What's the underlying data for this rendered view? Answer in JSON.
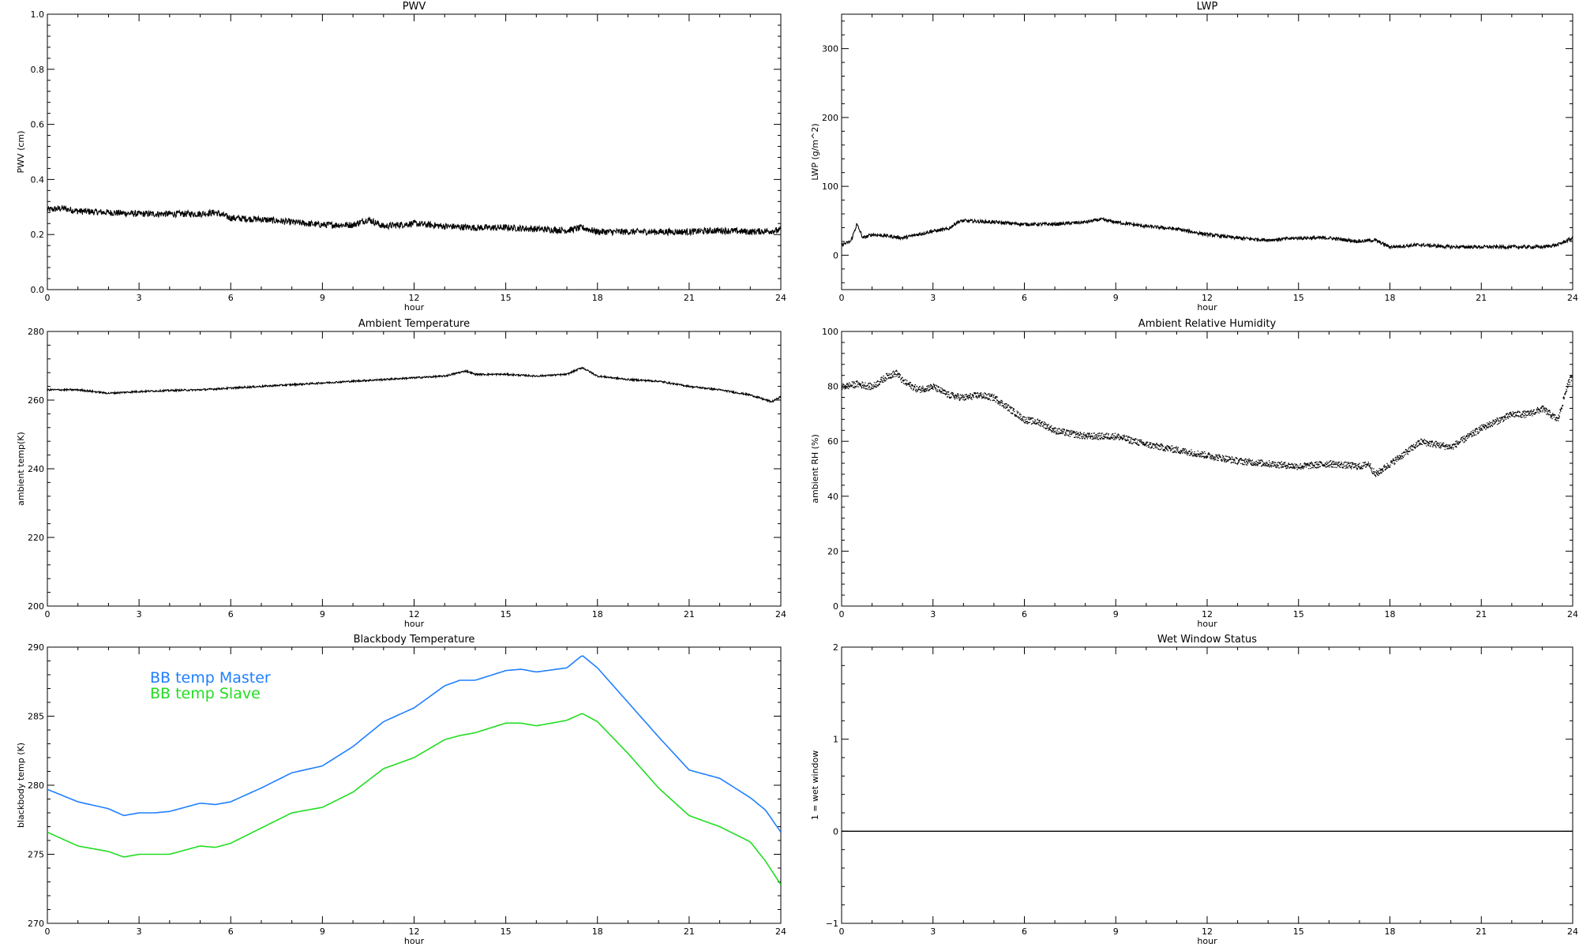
{
  "chart_data": [
    {
      "type": "line",
      "title": "PWV",
      "xlabel": "hour",
      "ylabel": "PWV (cm)",
      "xlim": [
        0,
        24
      ],
      "ylim": [
        0,
        1
      ],
      "xticks": [
        0,
        3,
        6,
        9,
        12,
        15,
        18,
        21,
        24
      ],
      "yticks": [
        "0.0",
        "0.2",
        "0.4",
        "0.6",
        "0.8",
        "1.0"
      ],
      "ytick_values": [
        0,
        0.2,
        0.4,
        0.6,
        0.8,
        1.0
      ],
      "series": [
        {
          "style": "noisy-line",
          "color": "#000000",
          "noise": 0.012,
          "x": [
            0,
            0.5,
            1,
            2,
            3,
            4,
            5,
            5.5,
            6,
            7,
            8,
            9,
            10,
            10.5,
            11,
            12,
            13,
            14,
            15,
            16,
            17,
            17.5,
            18,
            19,
            20,
            21,
            22,
            23,
            24
          ],
          "y": [
            0.29,
            0.295,
            0.285,
            0.28,
            0.275,
            0.275,
            0.275,
            0.28,
            0.26,
            0.255,
            0.245,
            0.235,
            0.235,
            0.255,
            0.23,
            0.24,
            0.23,
            0.225,
            0.225,
            0.22,
            0.215,
            0.225,
            0.21,
            0.21,
            0.21,
            0.21,
            0.215,
            0.21,
            0.215
          ]
        }
      ]
    },
    {
      "type": "line",
      "title": "LWP",
      "xlabel": "hour",
      "ylabel": "LWP (g/m^2)",
      "xlim": [
        0,
        24
      ],
      "ylim": [
        -50,
        350
      ],
      "xticks": [
        0,
        3,
        6,
        9,
        12,
        15,
        18,
        21,
        24
      ],
      "yticks": [
        "0",
        "100",
        "200",
        "300"
      ],
      "ytick_values": [
        0,
        100,
        200,
        300
      ],
      "series": [
        {
          "style": "noisy-line",
          "color": "#000000",
          "noise": 2.5,
          "x": [
            0,
            0.3,
            0.5,
            0.7,
            1,
            1.5,
            2,
            2.5,
            3,
            3.5,
            3.8,
            4,
            5,
            6,
            7,
            8,
            8.5,
            9,
            10,
            11,
            12,
            13,
            14,
            15,
            16,
            17,
            17.5,
            18,
            19,
            20,
            21,
            22,
            23,
            23.5,
            24
          ],
          "y": [
            15,
            20,
            45,
            25,
            30,
            28,
            25,
            30,
            35,
            38,
            48,
            50,
            48,
            45,
            45,
            48,
            52,
            48,
            42,
            38,
            30,
            25,
            22,
            25,
            25,
            20,
            22,
            12,
            15,
            12,
            12,
            12,
            12,
            15,
            25
          ]
        }
      ]
    },
    {
      "type": "line",
      "title": "Ambient Temperature",
      "xlabel": "hour",
      "ylabel": "ambient temp(K)",
      "xlim": [
        0,
        24
      ],
      "ylim": [
        200,
        280
      ],
      "xticks": [
        0,
        3,
        6,
        9,
        12,
        15,
        18,
        21,
        24
      ],
      "yticks": [
        "200",
        "220",
        "240",
        "260",
        "280"
      ],
      "ytick_values": [
        200,
        220,
        240,
        260,
        280
      ],
      "series": [
        {
          "style": "noisy-line",
          "color": "#000000",
          "noise": 0.25,
          "x": [
            0,
            1,
            2,
            3,
            4,
            5,
            6,
            7,
            8,
            9,
            10,
            11,
            12,
            13,
            13.7,
            14,
            15,
            16,
            17,
            17.5,
            18,
            19,
            20,
            21,
            22,
            23,
            23.7,
            24
          ],
          "y": [
            263,
            263,
            262,
            262.5,
            262.8,
            263,
            263.5,
            264,
            264.5,
            265,
            265.5,
            266,
            266.5,
            267,
            268.5,
            267.5,
            267.5,
            267,
            267.5,
            269.5,
            267,
            266,
            265.5,
            264,
            263,
            261.5,
            259.5,
            261
          ]
        }
      ]
    },
    {
      "type": "scatter",
      "title": "Ambient Relative Humidity",
      "xlabel": "hour",
      "ylabel": "ambient RH (%)",
      "xlim": [
        0,
        24
      ],
      "ylim": [
        0,
        100
      ],
      "xticks": [
        0,
        3,
        6,
        9,
        12,
        15,
        18,
        21,
        24
      ],
      "yticks": [
        "0",
        "20",
        "40",
        "60",
        "80",
        "100"
      ],
      "ytick_values": [
        0,
        20,
        40,
        60,
        80,
        100
      ],
      "series": [
        {
          "style": "dots",
          "color": "#000000",
          "noise": 1.2,
          "x": [
            0,
            0.5,
            1,
            1.5,
            1.8,
            2,
            2.5,
            3,
            3.5,
            4,
            4.5,
            5,
            5.5,
            6,
            6.5,
            7,
            8,
            9,
            10,
            11,
            12,
            13,
            14,
            15,
            16,
            17,
            17.3,
            17.5,
            18,
            18.5,
            19,
            20,
            21,
            22,
            22.5,
            23,
            23.5,
            23.8,
            24
          ],
          "y": [
            80,
            81,
            80,
            84,
            85,
            82,
            79,
            80,
            77,
            76,
            77,
            76,
            72,
            68,
            67,
            64,
            62,
            62,
            59,
            57,
            55,
            53,
            52,
            51,
            52,
            51,
            52,
            48,
            52,
            56,
            60,
            58,
            65,
            70,
            70,
            72,
            68,
            80,
            85
          ]
        }
      ]
    },
    {
      "type": "line",
      "title": "Blackbody Temperature",
      "xlabel": "hour",
      "ylabel": "blackbody temp (K)",
      "xlim": [
        0,
        24
      ],
      "ylim": [
        270,
        290
      ],
      "xticks": [
        0,
        3,
        6,
        9,
        12,
        15,
        18,
        21,
        24
      ],
      "yticks": [
        "270",
        "275",
        "280",
        "285",
        "290"
      ],
      "ytick_values": [
        270,
        275,
        280,
        285,
        290
      ],
      "legend": "top-left",
      "series": [
        {
          "name": "BB temp Master",
          "style": "smooth-line",
          "color": "#1f7fff",
          "x": [
            0,
            1,
            2,
            2.5,
            3,
            3.5,
            4,
            5,
            5.5,
            6,
            7,
            8,
            9,
            10,
            11,
            12,
            13,
            13.5,
            14,
            15,
            15.5,
            16,
            17,
            17.5,
            18,
            19,
            20,
            21,
            22,
            23,
            23.5,
            24
          ],
          "y": [
            279.7,
            278.8,
            278.3,
            277.8,
            278,
            278,
            278.1,
            278.7,
            278.6,
            278.8,
            279.8,
            280.9,
            281.4,
            282.8,
            284.6,
            285.6,
            287.2,
            287.6,
            287.6,
            288.3,
            288.4,
            288.2,
            288.5,
            289.4,
            288.5,
            286,
            283.5,
            281.1,
            280.5,
            279.1,
            278.2,
            276.6
          ]
        },
        {
          "name": "BB temp Slave",
          "style": "smooth-line",
          "color": "#22dd22",
          "x": [
            0,
            1,
            2,
            2.5,
            3,
            3.5,
            4,
            5,
            5.5,
            6,
            7,
            8,
            9,
            10,
            11,
            12,
            13,
            13.5,
            14,
            15,
            15.5,
            16,
            17,
            17.5,
            18,
            19,
            20,
            21,
            22,
            23,
            23.5,
            24
          ],
          "y": [
            276.6,
            275.6,
            275.2,
            274.8,
            275,
            275,
            275,
            275.6,
            275.5,
            275.8,
            276.9,
            278,
            278.4,
            279.5,
            281.2,
            282,
            283.3,
            283.6,
            283.8,
            284.5,
            284.5,
            284.3,
            284.7,
            285.2,
            284.6,
            282.3,
            279.8,
            277.8,
            277,
            275.9,
            274.5,
            272.8
          ]
        }
      ]
    },
    {
      "type": "line",
      "title": "Wet Window Status",
      "xlabel": "",
      "ylabel": "1 = wet window",
      "xlim": [
        0,
        24
      ],
      "ylim": [
        -1,
        2
      ],
      "xticks": [
        0,
        3,
        6,
        9,
        12,
        15,
        18,
        21,
        24
      ],
      "yticks": [
        "−1",
        "0",
        "1",
        "2"
      ],
      "ytick_values": [
        -1,
        0,
        1,
        2
      ],
      "series": [
        {
          "style": "line",
          "color": "#000000",
          "x": [
            0,
            24
          ],
          "y": [
            0,
            0
          ]
        }
      ]
    }
  ],
  "xlabels": [
    "hour",
    "hour",
    "hour",
    "hour",
    "hour"
  ]
}
